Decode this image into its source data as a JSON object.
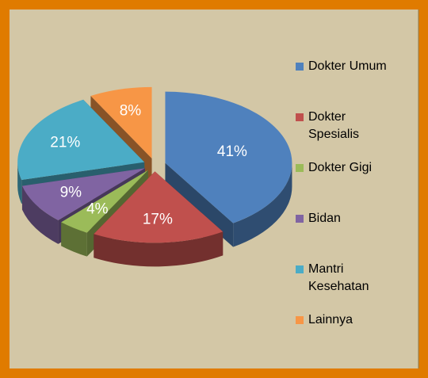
{
  "chart_data": {
    "type": "pie3d",
    "categories": [
      "Dokter Umum",
      "Dokter Spesialis",
      "Dokter Gigi",
      "Bidan",
      "Mantri Kesehatan",
      "Lainnya"
    ],
    "values": [
      41,
      17,
      4,
      9,
      21,
      8
    ],
    "value_labels": [
      "41%",
      "17%",
      "4%",
      "9%",
      "21%",
      "8%"
    ],
    "colors": [
      "#4F81BD",
      "#C0504D",
      "#9BBB59",
      "#8064A2",
      "#4BACC6",
      "#F79646"
    ],
    "legend": "right"
  }
}
